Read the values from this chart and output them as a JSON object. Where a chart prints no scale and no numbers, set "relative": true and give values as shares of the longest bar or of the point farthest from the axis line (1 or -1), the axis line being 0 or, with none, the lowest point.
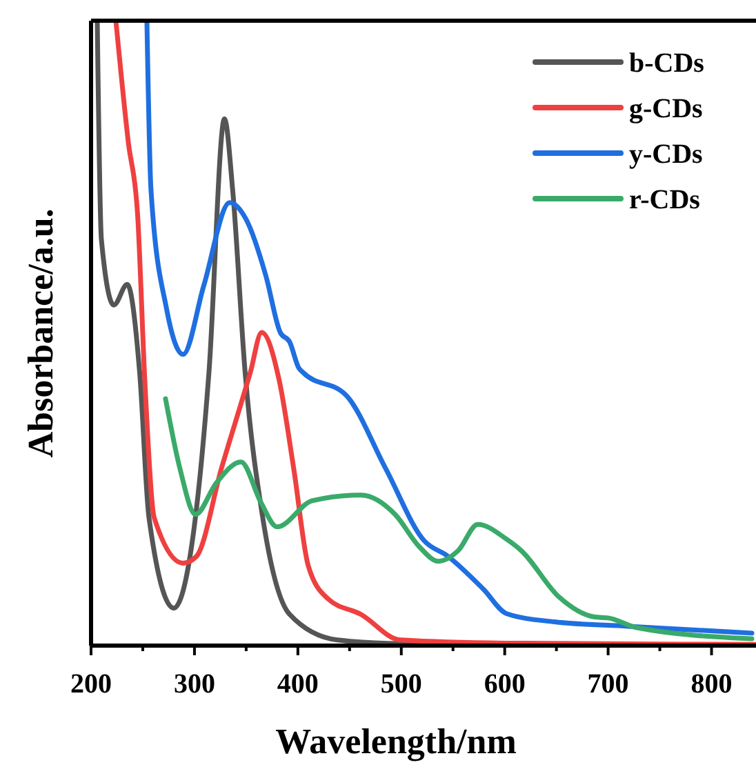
{
  "chart_data": {
    "type": "line",
    "relative": true,
    "xlabel": "Wavelength/nm",
    "ylabel": "Absorbance/a.u.",
    "legend": "top right",
    "line_style": "solid",
    "grid": false,
    "xlim": [
      200,
      843
    ],
    "xticks": [
      200,
      {
        "value": 250,
        "label": null
      },
      300,
      {
        "value": 350,
        "label": null
      },
      400,
      {
        "value": 450,
        "label": null
      },
      500,
      {
        "value": 550,
        "label": null
      },
      600,
      {
        "value": 650,
        "label": null
      },
      700,
      {
        "value": 750,
        "label": null
      },
      800
    ],
    "series": [
      {
        "name": "b-CDs",
        "color": "#555555",
        "x": [
          206,
          210,
          222,
          235,
          247,
          256,
          280,
          298,
          314,
          329,
          337,
          349,
          366,
          392,
          438,
          500,
          600,
          843
        ],
        "values": [
          1,
          0.65,
          0.545,
          0.578,
          0.437,
          0.205,
          0.06,
          0.168,
          0.437,
          0.843,
          0.728,
          0.437,
          0.205,
          0.05,
          0.009,
          0.003,
          0.002,
          0.001
        ]
      },
      {
        "name": "g-CDs",
        "color": "#ef4040",
        "x": [
          224,
          236,
          245,
          252,
          261,
          289,
          302,
          326,
          354,
          365,
          382,
          396,
          410,
          429,
          461,
          499,
          600,
          843
        ],
        "values": [
          1,
          0.806,
          0.69,
          0.424,
          0.205,
          0.132,
          0.143,
          0.283,
          0.437,
          0.501,
          0.424,
          0.283,
          0.128,
          0.075,
          0.05,
          0.009,
          0.004,
          0.002
        ]
      },
      {
        "name": "y-CDs",
        "color": "#1f6fe0",
        "x": [
          254,
          258,
          273,
          289,
          309,
          334,
          350,
          369,
          383,
          392,
          401,
          405,
          447,
          485,
          522,
          545,
          579,
          602,
          648,
          719,
          839
        ],
        "values": [
          1,
          0.728,
          0.539,
          0.466,
          0.576,
          0.709,
          0.682,
          0.592,
          0.501,
          0.486,
          0.444,
          0.437,
          0.4,
          0.283,
          0.168,
          0.143,
          0.091,
          0.051,
          0.038,
          0.031,
          0.02
        ]
      },
      {
        "name": "r-CDs",
        "color": "#3aaa6a",
        "x": [
          272,
          286,
          301,
          321,
          345,
          364,
          380,
          414,
          461,
          494,
          517,
          536,
          555,
          574,
          602,
          616,
          653,
          686,
          701,
          727,
          839
        ],
        "values": [
          0.395,
          0.283,
          0.21,
          0.26,
          0.294,
          0.23,
          0.19,
          0.232,
          0.241,
          0.21,
          0.159,
          0.135,
          0.152,
          0.194,
          0.17,
          0.152,
          0.077,
          0.046,
          0.044,
          0.029,
          0.011
        ]
      }
    ]
  }
}
